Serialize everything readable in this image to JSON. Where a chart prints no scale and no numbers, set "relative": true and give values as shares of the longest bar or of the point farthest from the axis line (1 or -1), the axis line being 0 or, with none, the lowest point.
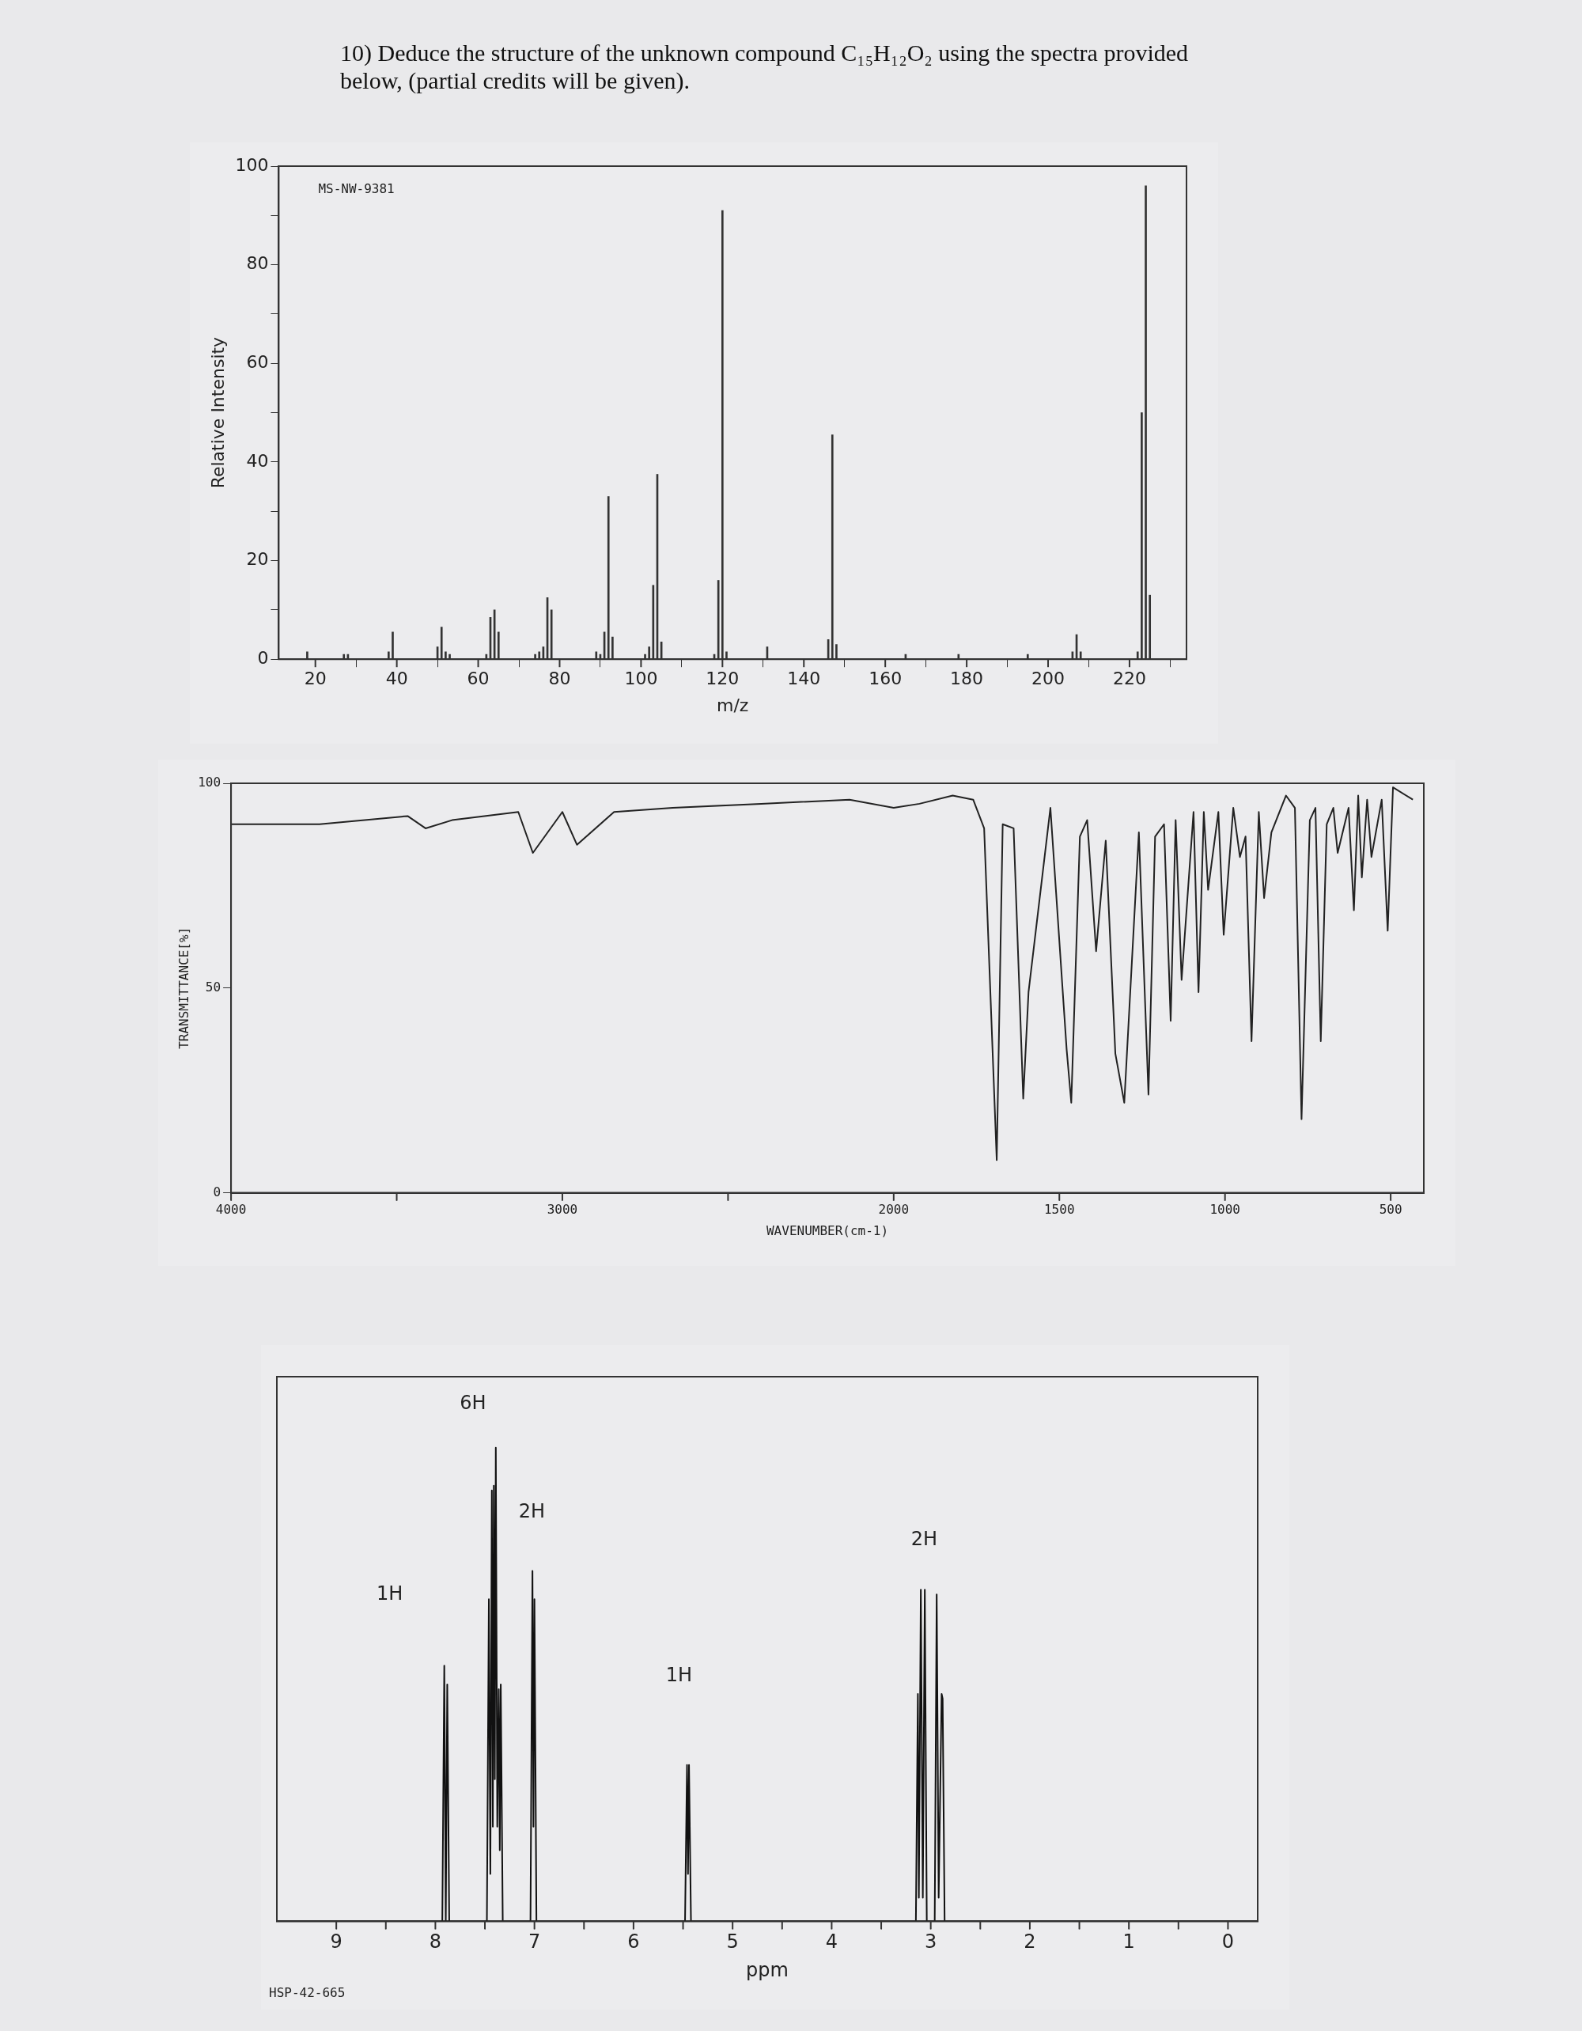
{
  "chart_data": [
    {
      "type": "bar",
      "title": "10) Deduce the structure of the unknown compound C₁₅H₁₂O₂ using the spectra provided below, (partial credits will be given).",
      "xlabel": "m/z",
      "ylabel": "Relative Intensity",
      "annotations": [
        "MS-NW-9381"
      ],
      "x": [
        18,
        27,
        28,
        38,
        39,
        50,
        51,
        52,
        53,
        62,
        63,
        64,
        65,
        74,
        75,
        76,
        77,
        78,
        89,
        90,
        91,
        92,
        93,
        101,
        102,
        103,
        104,
        105,
        118,
        119,
        120,
        121,
        131,
        146,
        147,
        148,
        165,
        178,
        195,
        206,
        207,
        208,
        222,
        223,
        224,
        225
      ],
      "values": [
        1.5,
        1,
        1,
        1.5,
        5.5,
        2.5,
        6.5,
        1.5,
        1,
        1,
        8.5,
        10,
        5.5,
        1,
        1.5,
        2.5,
        12.5,
        10,
        1.5,
        1,
        5.5,
        33,
        4.5,
        1,
        2.5,
        15,
        37.5,
        3.5,
        1,
        16,
        91,
        1.5,
        2.5,
        4,
        45.5,
        3,
        1,
        1,
        1,
        1.5,
        5,
        1.5,
        1.5,
        50,
        96,
        13
      ],
      "color": "#333333",
      "xlim": [
        11,
        234
      ],
      "ylim": [
        0,
        100
      ],
      "xticks": [
        20,
        40,
        60,
        80,
        100,
        120,
        140,
        160,
        180,
        200,
        220
      ],
      "yticks": [
        0,
        {
          "value": 10,
          "label": null
        },
        20,
        {
          "value": 30,
          "label": null
        },
        40,
        {
          "value": 50,
          "label": null
        },
        60,
        {
          "value": 70,
          "label": null
        },
        80,
        {
          "value": 90,
          "label": null
        },
        100
      ]
    },
    {
      "type": "line",
      "xlabel": "WAVENUMBER(cm-1)",
      "ylabel": "TRANSMITTANCE[%]",
      "x": [
        433,
        493,
        509,
        527,
        558,
        571,
        587,
        598,
        611,
        627,
        660,
        673,
        693,
        711,
        727,
        744,
        769,
        789,
        816,
        860,
        882,
        898,
        920,
        938,
        955,
        975,
        1004,
        1020,
        1051,
        1064,
        1080,
        1095,
        1131,
        1149,
        1164,
        1184,
        1211,
        1231,
        1260,
        1304,
        1331,
        1360,
        1389,
        1416,
        1438,
        1464,
        1478,
        1527,
        1593,
        1609,
        1638,
        1671,
        1689,
        1727,
        1760,
        1822,
        1922,
        2000,
        2133,
        2400,
        2667,
        2844,
        2956,
        3000,
        3089,
        3133,
        3333,
        3413,
        3467,
        3733,
        4000
      ],
      "values": [
        96,
        99,
        64,
        96,
        82,
        96,
        77,
        97,
        69,
        94,
        83,
        94,
        90,
        37,
        94,
        91,
        18,
        94,
        97,
        88,
        72,
        93,
        37,
        87,
        82,
        94,
        63,
        93,
        74,
        93,
        49,
        93,
        52,
        91,
        42,
        90,
        87,
        24,
        88,
        22,
        34,
        86,
        59,
        91,
        87,
        22,
        35,
        94,
        49,
        23,
        89,
        90,
        8,
        89,
        96,
        97,
        95,
        94,
        96,
        95,
        94,
        93,
        85,
        93,
        83,
        93,
        91,
        89,
        92,
        90,
        90
      ],
      "color": "#222222",
      "xlim": [
        4000,
        400
      ],
      "ylim": [
        0,
        100
      ],
      "xticks": [
        4000,
        {
          "value": 3500,
          "label": null
        },
        3000,
        {
          "value": 2500,
          "label": null
        },
        2000,
        1500,
        1000,
        500
      ],
      "yticks": [
        0,
        50,
        100
      ]
    },
    {
      "type": "line",
      "xlabel": "ppm",
      "relative": true,
      "annotations": [
        "1H",
        "6H",
        "2H",
        "1H",
        "2H",
        "HSP-42-665"
      ],
      "x": [
        9.6,
        7.93,
        7.91,
        7.895,
        7.88,
        7.86,
        7.48,
        7.46,
        7.445,
        7.43,
        7.42,
        7.41,
        7.4,
        7.39,
        7.375,
        7.36,
        7.35,
        7.34,
        7.32,
        7.04,
        7.02,
        7.01,
        7.0,
        6.98,
        5.48,
        5.46,
        5.45,
        5.44,
        5.42,
        3.15,
        3.13,
        3.12,
        3.1,
        3.08,
        3.06,
        3.04,
        2.96,
        2.94,
        2.92,
        2.89,
        2.88,
        2.86,
        -0.3
      ],
      "values": [
        0,
        0,
        0.54,
        0,
        0.5,
        0,
        0,
        0.68,
        0.1,
        0.91,
        0.2,
        0.92,
        0.3,
        1,
        0.2,
        0.49,
        0.15,
        0.5,
        0,
        0,
        0.74,
        0.2,
        0.68,
        0,
        0,
        0.33,
        0.1,
        0.33,
        0,
        0,
        0.48,
        0.05,
        0.7,
        0.05,
        0.7,
        0,
        0,
        0.69,
        0.05,
        0.48,
        0.47,
        0,
        0
      ],
      "color": "#111111",
      "xlim": [
        9.6,
        -0.3
      ],
      "xticks": [
        9,
        {
          "value": 8.5,
          "label": null
        },
        8,
        {
          "value": 7.5,
          "label": null
        },
        7,
        {
          "value": 6.5,
          "label": null
        },
        6,
        {
          "value": 5.5,
          "label": null
        },
        5,
        {
          "value": 4.5,
          "label": null
        },
        4,
        {
          "value": 3.5,
          "label": null
        },
        3,
        {
          "value": 2.5,
          "label": null
        },
        2,
        {
          "value": 1.5,
          "label": null
        },
        1,
        {
          "value": 0.5,
          "label": null
        },
        0
      ]
    }
  ]
}
